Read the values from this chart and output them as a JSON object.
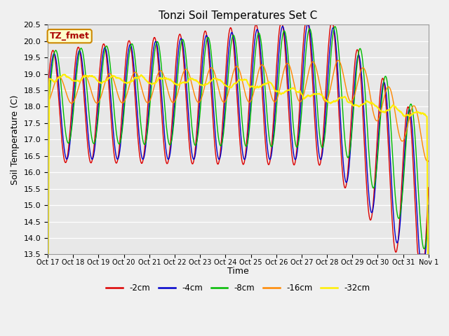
{
  "title": "Tonzi Soil Temperatures Set C",
  "xlabel": "Time",
  "ylabel": "Soil Temperature (C)",
  "ylim": [
    13.5,
    20.5
  ],
  "yticks": [
    13.5,
    14.0,
    14.5,
    15.0,
    15.5,
    16.0,
    16.5,
    17.0,
    17.5,
    18.0,
    18.5,
    19.0,
    19.5,
    20.0,
    20.5
  ],
  "bg_color": "#e8e8e8",
  "fig_color": "#f0f0f0",
  "annotation_text": "TZ_fmet",
  "annotation_bg": "#ffffcc",
  "annotation_border": "#cc8800",
  "annotation_text_color": "#aa0000",
  "series": [
    {
      "label": "-2cm",
      "color": "#dd0000",
      "lw": 1.0
    },
    {
      "label": "-4cm",
      "color": "#0000cc",
      "lw": 1.0
    },
    {
      "label": "-8cm",
      "color": "#00bb00",
      "lw": 1.0
    },
    {
      "label": "-16cm",
      "color": "#ff8800",
      "lw": 1.0
    },
    {
      "label": "-32cm",
      "color": "#ffee00",
      "lw": 1.5
    }
  ],
  "xtick_labels": [
    "Oct 17",
    "Oct 18",
    "Oct 19",
    "Oct 20",
    "Oct 21",
    "Oct 22",
    "Oct 23",
    "Oct 24",
    "Oct 25",
    "Oct 26",
    "Oct 27",
    "Oct 28",
    "Oct 29",
    "Oct 30",
    "Oct 31",
    "Nov 1"
  ],
  "n_points": 720,
  "days": 15
}
